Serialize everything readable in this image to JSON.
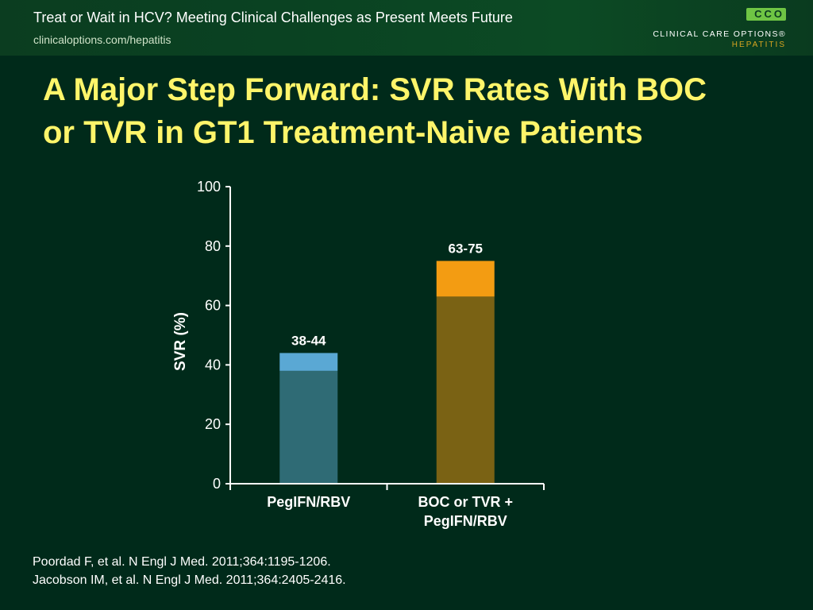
{
  "header": {
    "title": "Treat or Wait in HCV? Meeting Clinical Challenges as Present Meets Future",
    "url": "clinicaloptions.com/hepatitis"
  },
  "logo": {
    "badge": "CCO",
    "brand": "CLINICAL CARE OPTIONS®",
    "subtitle": "HEPATITIS"
  },
  "slide": {
    "title_lines": [
      "A Major Step Forward: SVR Rates With BOC",
      "or TVR in GT1 Treatment-Naive Patients"
    ]
  },
  "chart_data": {
    "type": "bar",
    "stacked_range": true,
    "categories": [
      "PegIFN/RBV",
      "BOC or TVR + PegIFN/RBV"
    ],
    "category_labels": [
      [
        "PegIFN/RBV"
      ],
      [
        "BOC or TVR +",
        "PegIFN/RBV"
      ]
    ],
    "ranges": [
      [
        38,
        44
      ],
      [
        63,
        75
      ]
    ],
    "data_labels": [
      "38-44",
      "63-75"
    ],
    "colors": {
      "low": [
        "#2f6b75",
        "#7a6214"
      ],
      "high": [
        "#5aa8d4",
        "#f39c12"
      ]
    },
    "ylabel": "SVR (%)",
    "xlabel": "",
    "ylim": [
      0,
      100
    ],
    "yticks": [
      0,
      20,
      40,
      60,
      80,
      100
    ],
    "grid": false
  },
  "references": [
    "Poordad F, et al. N Engl J Med. 2011;364:1195-1206.",
    "Jacobson IM, et al. N Engl J Med. 2011;364:2405-2416."
  ]
}
